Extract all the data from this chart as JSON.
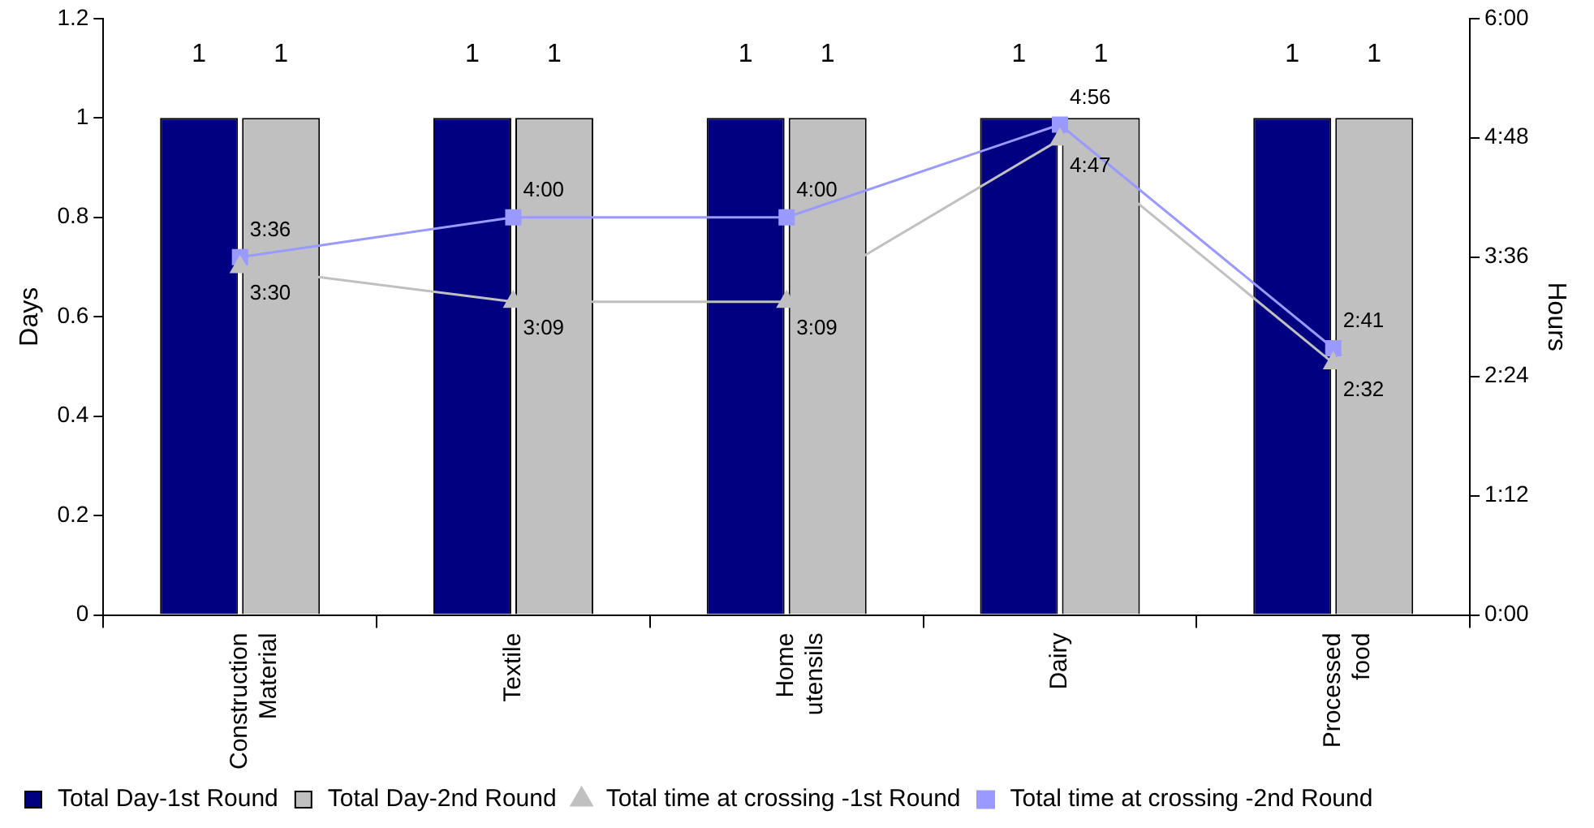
{
  "chart_data": {
    "type": "bar",
    "categories": [
      "Construction Material",
      "Textile",
      "Home utensils",
      "Dairy",
      "Processed food"
    ],
    "ylabel": "Days",
    "y2label": "Hours",
    "ylim": [
      0,
      1.2
    ],
    "yticks": [
      0,
      0.2,
      0.4,
      0.6,
      0.8,
      1,
      1.2
    ],
    "y2lim": [
      0,
      6
    ],
    "y2ticks": [
      {
        "value": 0,
        "label": "0:00"
      },
      {
        "value": 1.2,
        "label": "1:12"
      },
      {
        "value": 2.4,
        "label": "2:24"
      },
      {
        "value": 3.6,
        "label": "3:36"
      },
      {
        "value": 4.8,
        "label": "4:48"
      },
      {
        "value": 6,
        "label": "6:00"
      }
    ],
    "grid": false,
    "legend": "bottom",
    "series": [
      {
        "name": "Total Day-1st Round",
        "color": "#000080",
        "values": [
          1,
          1,
          1,
          1,
          1
        ],
        "value_labels": [
          "1",
          "1",
          "1",
          "1",
          "1"
        ]
      },
      {
        "name": "Total Day-2nd Round",
        "color": "#c0c0c0",
        "values": [
          1,
          1,
          1,
          1,
          1
        ],
        "value_labels": [
          "1",
          "1",
          "1",
          "1",
          "1"
        ]
      },
      {
        "name": "Total time at crossing -1st Round",
        "type": "line",
        "axis": "y2",
        "color": "#c0c0c0",
        "marker": "triangle",
        "values": [
          3.5,
          3.15,
          3.15,
          4.783,
          2.533
        ],
        "value_labels": [
          "3:30",
          "3:09",
          "3:09",
          "4:47",
          "2:32"
        ]
      },
      {
        "name": "Total time at crossing -2nd Round",
        "type": "line",
        "axis": "y2",
        "color": "#9999ff",
        "marker": "square",
        "values": [
          3.6,
          4,
          4,
          4.933,
          2.683
        ],
        "value_labels": [
          "3:36",
          "4:00",
          "4:00",
          "4:56",
          "2:41"
        ]
      }
    ]
  }
}
